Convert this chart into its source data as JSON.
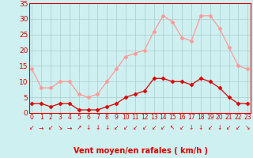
{
  "x": [
    0,
    1,
    2,
    3,
    4,
    5,
    6,
    7,
    8,
    9,
    10,
    11,
    12,
    13,
    14,
    15,
    16,
    17,
    18,
    19,
    20,
    21,
    22,
    23
  ],
  "vent_moyen": [
    3,
    3,
    2,
    3,
    3,
    1,
    1,
    1,
    2,
    3,
    5,
    6,
    7,
    11,
    11,
    10,
    10,
    9,
    11,
    10,
    8,
    5,
    3,
    3
  ],
  "rafales": [
    14,
    8,
    8,
    10,
    10,
    6,
    5,
    6,
    10,
    14,
    18,
    19,
    20,
    26,
    31,
    29,
    24,
    23,
    31,
    31,
    27,
    21,
    15,
    14
  ],
  "bg_color": "#cff0f0",
  "line_color_moyen": "#dd0000",
  "line_color_rafales": "#ff9999",
  "grid_color": "#aacccc",
  "xlabel": "Vent moyen/en rafales ( km/h )",
  "xlabel_color": "#dd0000",
  "ytick_labels": [
    "0",
    "5",
    "10",
    "15",
    "20",
    "25",
    "30",
    "35"
  ],
  "ytick_values": [
    0,
    5,
    10,
    15,
    20,
    25,
    30,
    35
  ],
  "ylim": [
    0,
    35
  ],
  "xlim": [
    -0.3,
    23.3
  ],
  "tick_color": "#dd0000",
  "marker": "D",
  "markersize": 2.5,
  "arrow_chars": [
    "↙",
    "→",
    "↙",
    "↘",
    "→",
    "↗",
    "↓",
    "↓",
    "↓",
    "↙",
    "↙",
    "↙",
    "↙",
    "↙",
    "↙",
    "↖",
    "↙",
    "↓",
    "↓",
    "↙",
    "↓",
    "↙",
    "↙",
    "↘"
  ]
}
